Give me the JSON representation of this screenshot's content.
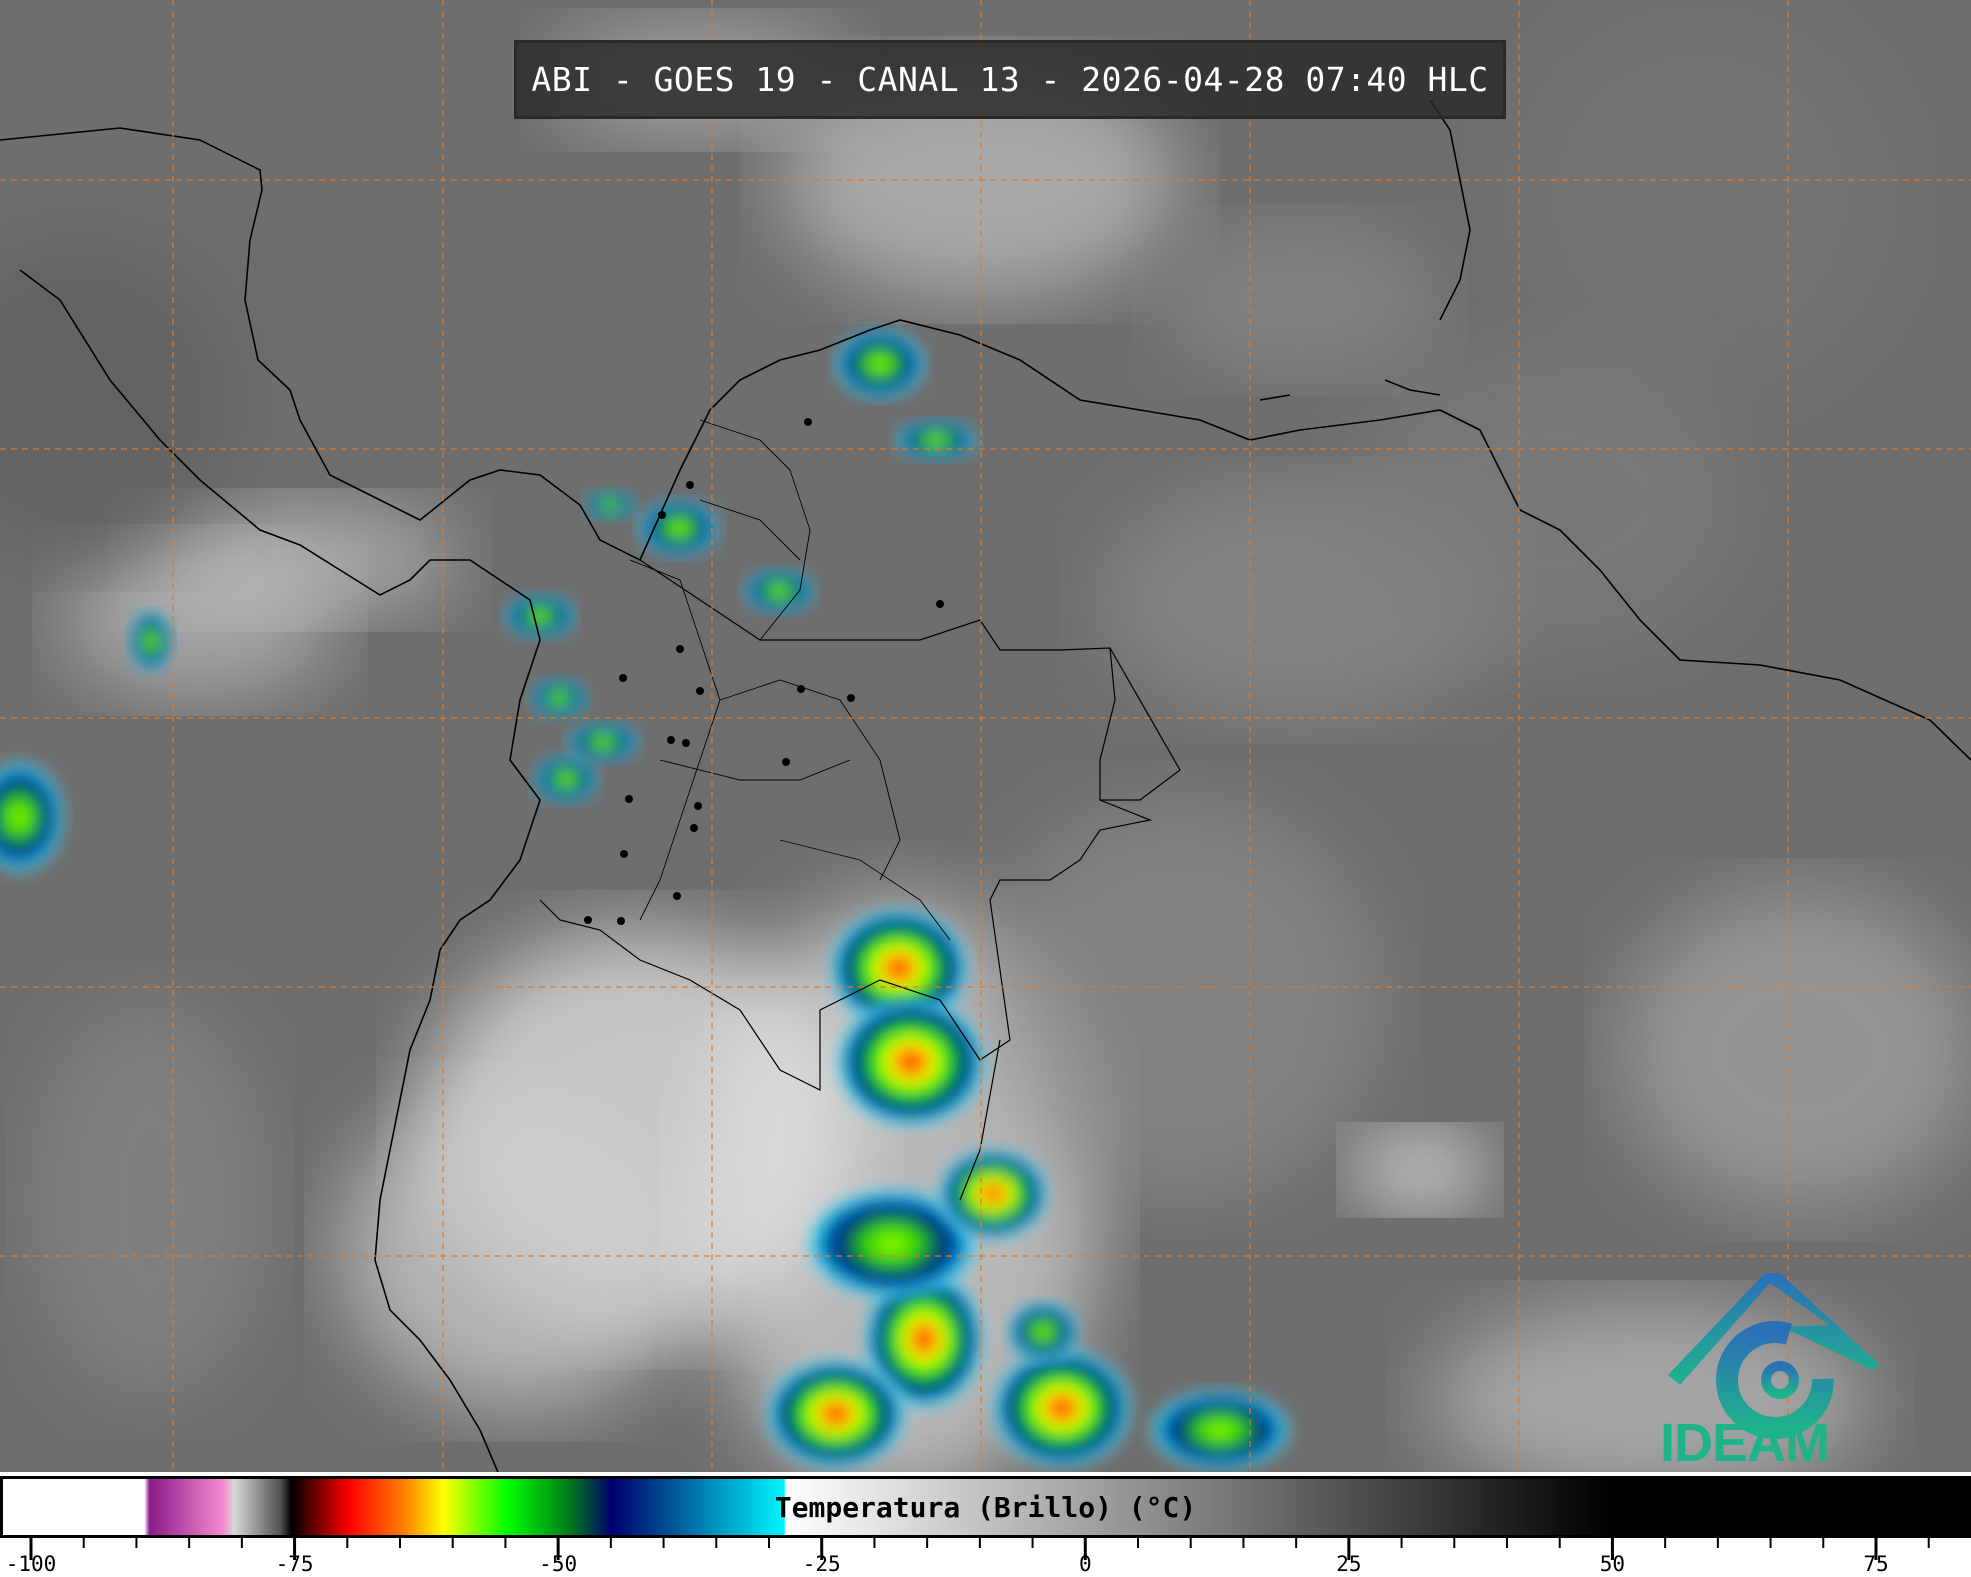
{
  "title": "ABI - GOES 19 - CANAL 13 - 2026-04-28 07:40 HLC",
  "colorbar": {
    "label": "Temperatura (Brillo) (°C)",
    "range": [
      -103,
      84
    ],
    "tick_labels": [
      "-100",
      "-75",
      "-50",
      "-25",
      "0",
      "25",
      "50",
      "75"
    ],
    "tick_values": [
      -100,
      -75,
      -50,
      -25,
      0,
      25,
      50,
      75
    ],
    "minor_tick_step": 5,
    "stops": [
      {
        "t": -103,
        "color": "#ffffff"
      },
      {
        "t": -89.5,
        "color": "#ffffff"
      },
      {
        "t": -89,
        "color": "#8a1a8a"
      },
      {
        "t": -82,
        "color": "#f58ad0"
      },
      {
        "t": -81,
        "color": "#d8d8d8"
      },
      {
        "t": -76.5,
        "color": "#505050"
      },
      {
        "t": -75.5,
        "color": "#000000"
      },
      {
        "t": -74,
        "color": "#4a0000"
      },
      {
        "t": -70,
        "color": "#ff0000"
      },
      {
        "t": -65,
        "color": "#ff7a00"
      },
      {
        "t": -61,
        "color": "#ffff00"
      },
      {
        "t": -55,
        "color": "#00ff00"
      },
      {
        "t": -49,
        "color": "#007a1a"
      },
      {
        "t": -45,
        "color": "#000070"
      },
      {
        "t": -40,
        "color": "#004a90"
      },
      {
        "t": -28.6,
        "color": "#00f5ff"
      },
      {
        "t": -28.5,
        "color": "#ffffff"
      },
      {
        "t": 50,
        "color": "#000000"
      },
      {
        "t": 84,
        "color": "#000000"
      }
    ]
  },
  "logo": {
    "text": "IDEAM",
    "color_top": "#2a6fb8",
    "color_bottom": "#1fb38a"
  },
  "colors": {
    "grid": "#e07a2a",
    "coastline": "#000000"
  }
}
